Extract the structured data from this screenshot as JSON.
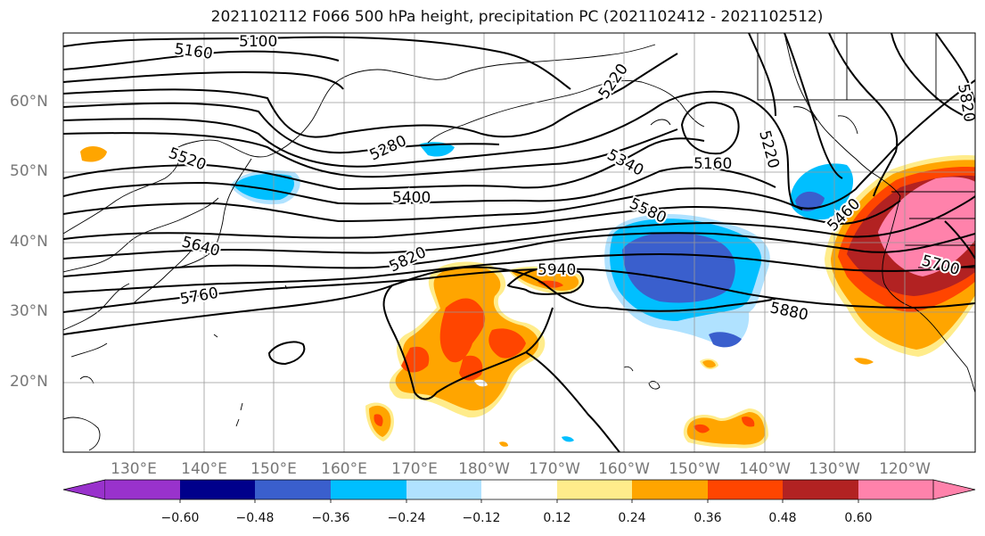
{
  "title": "2021102112 F066 500 hPa height, precipitation PC (2021102412 - 2021102512)",
  "lat_labels": [
    "60°N",
    "50°N",
    "40°N",
    "30°N",
    "20°N"
  ],
  "lon_labels": [
    "130°E",
    "140°E",
    "150°E",
    "160°E",
    "170°E",
    "180°W",
    "170°W",
    "160°W",
    "150°W",
    "140°W",
    "130°W",
    "120°W"
  ],
  "contour_labels": [
    "5100",
    "5160",
    "5220",
    "5820",
    "5280",
    "5520",
    "5340",
    "5400",
    "5580",
    "5160",
    "5220",
    "5460",
    "5640",
    "5820",
    "5940",
    "5760",
    "5880",
    "5700"
  ],
  "colorbar": {
    "colors": [
      "#9932cc",
      "#00008b",
      "#3a5fcd",
      "#00bfff",
      "#b0e2ff",
      "#ffffff",
      "#ffec8b",
      "#ffa500",
      "#ff4500",
      "#b22222",
      "#ff82ab"
    ],
    "ticks": [
      "−0.60",
      "−0.48",
      "−0.36",
      "−0.24",
      "−0.12",
      "0.12",
      "0.24",
      "0.36",
      "0.48",
      "0.60"
    ]
  }
}
